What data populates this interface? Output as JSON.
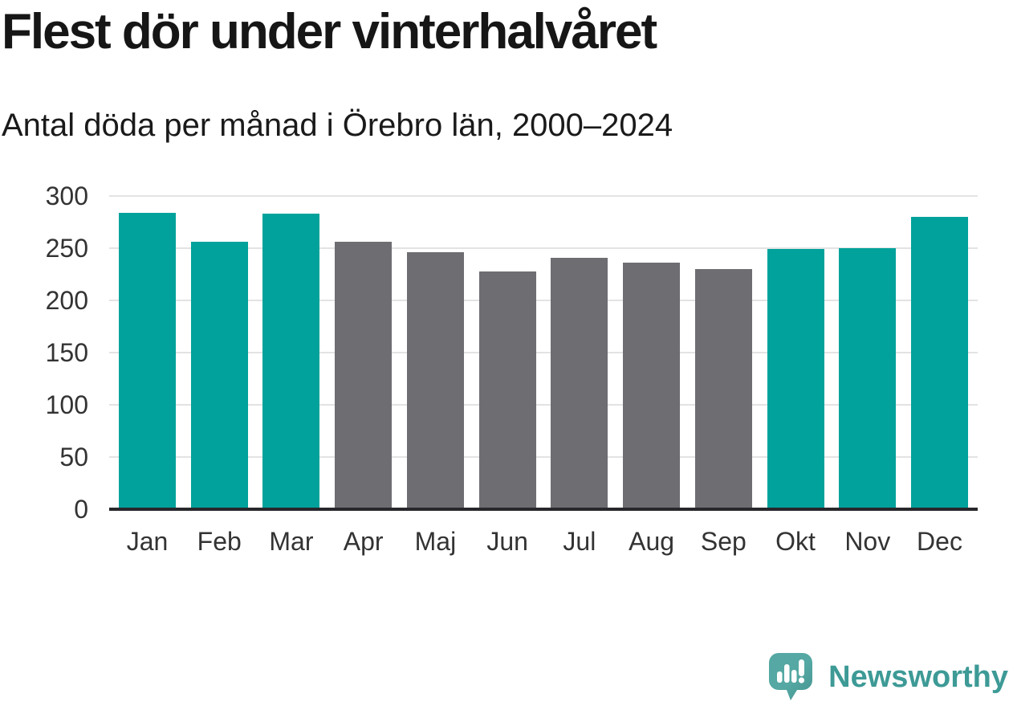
{
  "header": {
    "title": "Flest dör under vinterhalvåret",
    "subtitle": "Antal döda per månad i Örebro län, 2000–2024"
  },
  "chart_data": {
    "type": "bar",
    "title": "Flest dör under vinterhalvåret",
    "subtitle": "Antal döda per månad i Örebro län, 2000–2024",
    "categories": [
      "Jan",
      "Feb",
      "Mar",
      "Apr",
      "Maj",
      "Jun",
      "Jul",
      "Aug",
      "Sep",
      "Okt",
      "Nov",
      "Dec"
    ],
    "values": [
      284,
      256,
      283,
      256,
      246,
      228,
      241,
      236,
      230,
      249,
      250,
      280
    ],
    "highlighted_categories": [
      "Jan",
      "Feb",
      "Mar",
      "Okt",
      "Nov",
      "Dec"
    ],
    "highlight_color": "#00a29b",
    "base_color": "#6d6d72",
    "xlabel": "",
    "ylabel": "",
    "ylim": [
      0,
      300
    ],
    "yticks": [
      0,
      50,
      100,
      150,
      200,
      250,
      300
    ],
    "grid": true,
    "legend": false,
    "gridline_color": "#e3e3e3",
    "axis_line_color": "#28282c",
    "tick_label_color": "#333333"
  },
  "footer": {
    "brand": "Newsworthy",
    "brand_color": "#3d9a96",
    "logo_icon": "speech-bubble-bar-chart-icon",
    "logo_color": "#4fa5a0"
  }
}
